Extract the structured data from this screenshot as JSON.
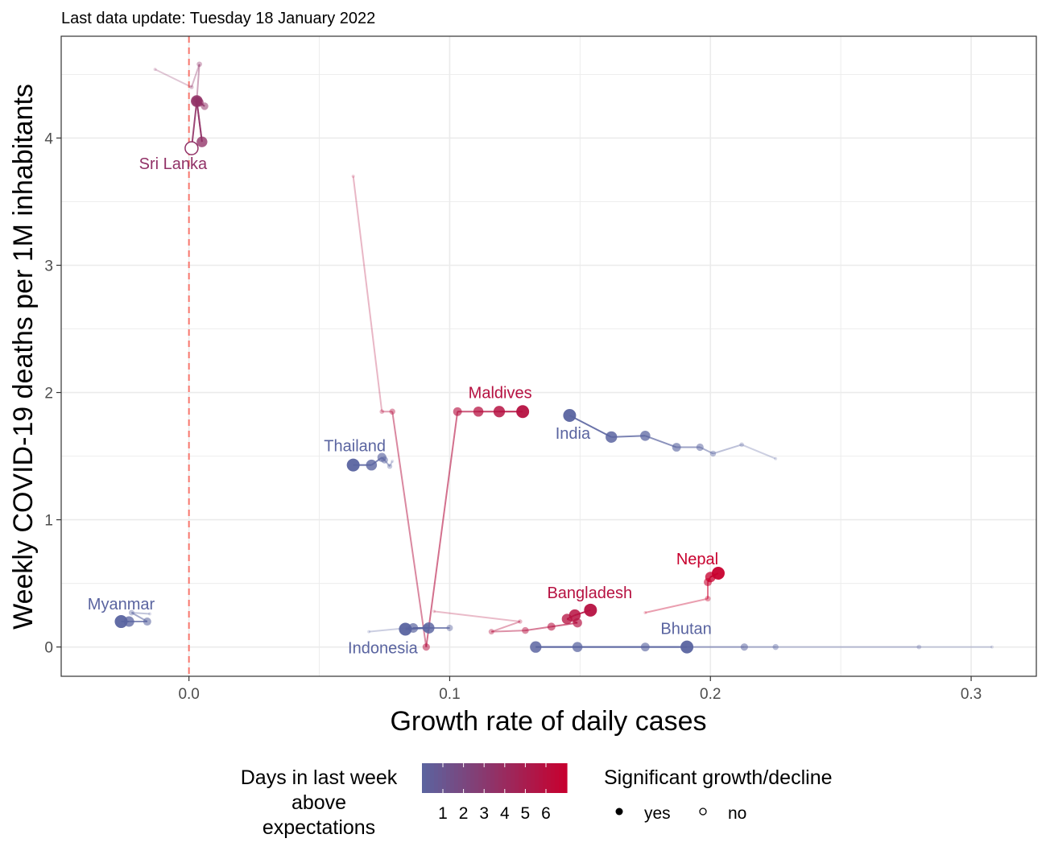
{
  "subtitle": "Last data update: Tuesday 18 January 2022",
  "chart_data": {
    "type": "scatter",
    "subtype": "connected trajectory scatter",
    "xlabel": "Growth rate of daily cases",
    "ylabel": "Weekly COVID-19 deaths per 1M inhabitants",
    "xlim": [
      -0.049,
      0.325
    ],
    "ylim": [
      -0.23,
      4.8
    ],
    "x_ticks": [
      0.0,
      0.1,
      0.2,
      0.3
    ],
    "x_tick_labels": [
      "0.0",
      "0.1",
      "0.2",
      "0.3"
    ],
    "y_ticks": [
      0,
      1,
      2,
      3,
      4
    ],
    "y_tick_labels": [
      "0",
      "1",
      "2",
      "3",
      "4"
    ],
    "grid": true,
    "reference_line": {
      "x": 0.0,
      "color": "#f8766d",
      "style": "dashed"
    },
    "color_scale": {
      "low": "#5a64a0",
      "high": "#c8002e",
      "min": 0,
      "max": 6
    },
    "series": [
      {
        "name": "Sri Lanka",
        "label": "Sri Lanka",
        "days_above": 3,
        "points": [
          [
            -0.013,
            4.54
          ],
          [
            0.001,
            4.4
          ],
          [
            0.004,
            4.58
          ],
          [
            0.003,
            4.3
          ],
          [
            0.006,
            4.25
          ],
          [
            0.004,
            4.28
          ],
          [
            0.003,
            4.29
          ],
          [
            0.005,
            3.97
          ],
          [
            0.003,
            4.29
          ],
          [
            0.001,
            3.92
          ]
        ],
        "significant": [
          true,
          true,
          true,
          true,
          true,
          true,
          true,
          true,
          true,
          false
        ]
      },
      {
        "name": "Maldives",
        "label": "Maldives",
        "days_above": 5,
        "points": [
          [
            0.063,
            3.7
          ],
          [
            0.074,
            1.85
          ],
          [
            0.078,
            1.85
          ],
          [
            0.091,
            0.0
          ],
          [
            0.103,
            1.85
          ],
          [
            0.111,
            1.85
          ],
          [
            0.119,
            1.85
          ],
          [
            0.128,
            1.85
          ]
        ],
        "significant": [
          true,
          true,
          true,
          true,
          true,
          true,
          true,
          true
        ]
      },
      {
        "name": "India",
        "label": "India",
        "days_above": 0,
        "points": [
          [
            0.225,
            1.48
          ],
          [
            0.212,
            1.59
          ],
          [
            0.201,
            1.52
          ],
          [
            0.196,
            1.57
          ],
          [
            0.187,
            1.57
          ],
          [
            0.175,
            1.66
          ],
          [
            0.162,
            1.65
          ],
          [
            0.146,
            1.82
          ]
        ],
        "significant": [
          true,
          true,
          true,
          true,
          true,
          true,
          true,
          true
        ]
      },
      {
        "name": "Thailand",
        "label": "Thailand",
        "days_above": 0,
        "points": [
          [
            0.078,
            1.46
          ],
          [
            0.077,
            1.42
          ],
          [
            0.075,
            1.47
          ],
          [
            0.074,
            1.49
          ],
          [
            0.07,
            1.43
          ],
          [
            0.063,
            1.43
          ]
        ],
        "significant": [
          true,
          true,
          true,
          true,
          true,
          true
        ]
      },
      {
        "name": "Myanmar",
        "label": "Myanmar",
        "days_above": 0,
        "points": [
          [
            -0.015,
            0.26
          ],
          [
            -0.022,
            0.27
          ],
          [
            -0.016,
            0.2
          ],
          [
            -0.023,
            0.2
          ],
          [
            -0.026,
            0.2
          ]
        ],
        "significant": [
          true,
          true,
          true,
          true,
          true
        ]
      },
      {
        "name": "Indonesia",
        "label": "Indonesia",
        "days_above": 0,
        "points": [
          [
            0.069,
            0.12
          ],
          [
            0.084,
            0.15
          ],
          [
            0.1,
            0.15
          ],
          [
            0.091,
            0.15
          ],
          [
            0.086,
            0.15
          ],
          [
            0.092,
            0.15
          ],
          [
            0.083,
            0.14
          ]
        ],
        "significant": [
          true,
          true,
          true,
          true,
          true,
          true,
          true
        ]
      },
      {
        "name": "Bangladesh",
        "label": "Bangladesh",
        "days_above": 5,
        "points": [
          [
            0.094,
            0.28
          ],
          [
            0.127,
            0.2
          ],
          [
            0.116,
            0.12
          ],
          [
            0.129,
            0.13
          ],
          [
            0.139,
            0.16
          ],
          [
            0.149,
            0.19
          ],
          [
            0.145,
            0.22
          ],
          [
            0.148,
            0.25
          ],
          [
            0.154,
            0.29
          ]
        ],
        "significant": [
          true,
          true,
          true,
          true,
          true,
          true,
          true,
          true,
          true
        ]
      },
      {
        "name": "Nepal",
        "label": "Nepal",
        "days_above": 6,
        "points": [
          [
            0.175,
            0.27
          ],
          [
            0.199,
            0.38
          ],
          [
            0.199,
            0.51
          ],
          [
            0.2,
            0.55
          ],
          [
            0.203,
            0.58
          ]
        ],
        "significant": [
          true,
          true,
          true,
          true,
          true
        ]
      },
      {
        "name": "Bhutan",
        "label": "Bhutan",
        "days_above": 0,
        "points": [
          [
            0.308,
            0.0
          ],
          [
            0.28,
            0.0
          ],
          [
            0.225,
            0.0
          ],
          [
            0.213,
            0.0
          ],
          [
            0.175,
            0.0
          ],
          [
            0.149,
            0.0
          ],
          [
            0.133,
            0.0
          ],
          [
            0.191,
            0.0
          ]
        ],
        "significant": [
          true,
          true,
          true,
          true,
          true,
          true,
          true,
          true
        ]
      }
    ],
    "legend": {
      "color_title": "Days in last week above expectations",
      "color_title_lines": [
        "Days in last week",
        "above",
        "expectations"
      ],
      "color_ticks": [
        "1",
        "2",
        "3",
        "4",
        "5",
        "6"
      ],
      "shape_title": "Significant growth/decline",
      "shape_items": [
        "yes",
        "no"
      ]
    }
  }
}
